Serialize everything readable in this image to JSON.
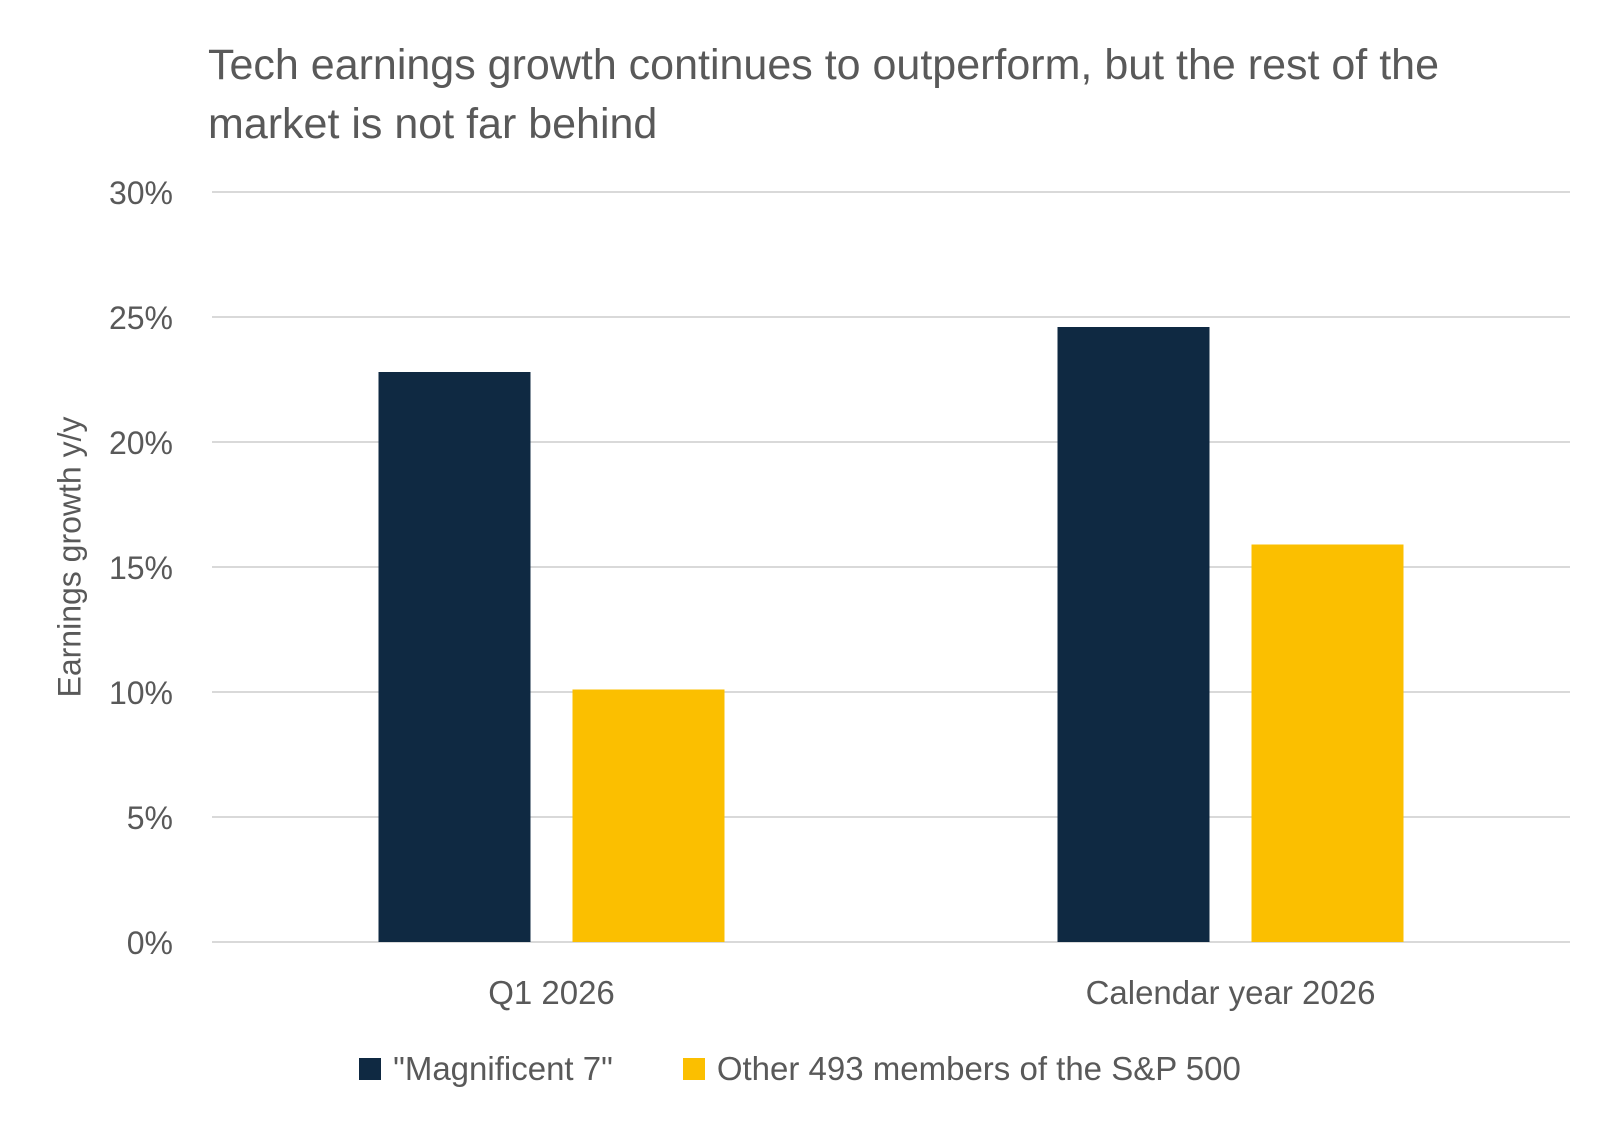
{
  "chart_data": {
    "type": "bar",
    "title": "Tech earnings growth continues to outperform, but the rest of the market is not far behind",
    "ylabel": "Earnings growth y/y",
    "categories": [
      "Q1 2026",
      "Calendar year 2026"
    ],
    "series": [
      {
        "name": "\"Magnificent 7\"",
        "values": [
          22.8,
          24.6
        ],
        "color": "#0f2942"
      },
      {
        "name": "Other 493 members of the S&P 500",
        "values": [
          10.1,
          15.9
        ],
        "color": "#fbbf00"
      }
    ],
    "ylim": [
      0,
      30
    ],
    "yticks": [
      0,
      5,
      10,
      15,
      20,
      25,
      30
    ],
    "ytick_labels": [
      "0%",
      "5%",
      "10%",
      "15%",
      "20%",
      "25%",
      "30%"
    ],
    "grid": true,
    "legend_position": "bottom"
  }
}
